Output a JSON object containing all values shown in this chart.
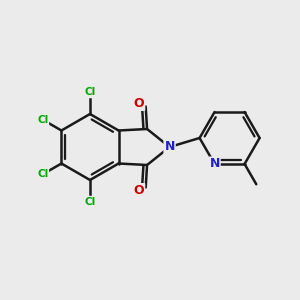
{
  "background_color": "#EBEBEB",
  "bond_color": "#1a1a1a",
  "bond_width": 1.8,
  "atom_colors": {
    "C": "#1a1a1a",
    "N_isoindole": "#2020CC",
    "N_pyridine": "#2020CC",
    "O": "#CC0000",
    "Cl": "#00AA00"
  },
  "figsize": [
    3.0,
    3.0
  ],
  "dpi": 100
}
